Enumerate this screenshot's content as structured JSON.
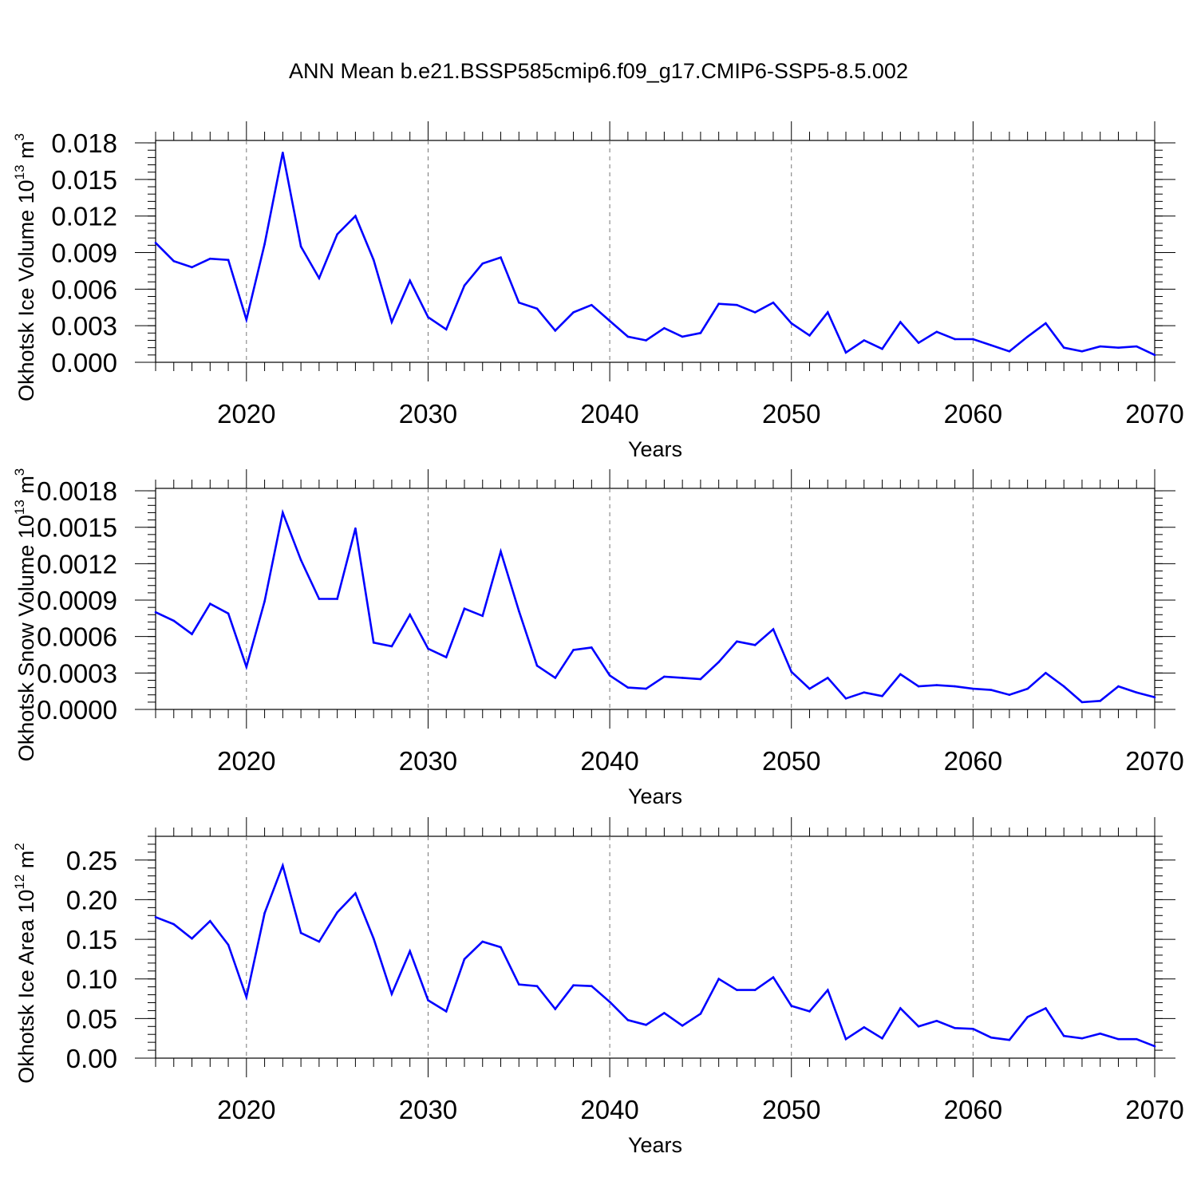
{
  "title": "ANN Mean b.e21.BSSP585cmip6.f09_g17.CMIP6-SSP5-8.5.002",
  "chart_data": [
    {
      "type": "line",
      "title": "",
      "xlabel": "Years",
      "ylabel": "Okhotsk Ice Volume 10",
      "ylabel_exp": "13",
      "ylabel_unit": "m",
      "ylabel_unit_exp": "3",
      "xlim": [
        2015,
        2070
      ],
      "ylim": [
        0,
        0.0182
      ],
      "xticks": [
        "2020",
        "2030",
        "2040",
        "2050",
        "2060",
        "2070"
      ],
      "yticks": [
        "0.000",
        "0.003",
        "0.006",
        "0.009",
        "0.012",
        "0.015",
        "0.018"
      ],
      "grid": "vertical dashed at major x ticks",
      "series": [
        {
          "name": "Ice Volume",
          "color": "#0000ff",
          "x": [
            2015,
            2016,
            2017,
            2018,
            2019,
            2020,
            2021,
            2022,
            2023,
            2024,
            2025,
            2026,
            2027,
            2028,
            2029,
            2030,
            2031,
            2032,
            2033,
            2034,
            2035,
            2036,
            2037,
            2038,
            2039,
            2040,
            2041,
            2042,
            2043,
            2044,
            2045,
            2046,
            2047,
            2048,
            2049,
            2050,
            2051,
            2052,
            2053,
            2054,
            2055,
            2056,
            2057,
            2058,
            2059,
            2060,
            2061,
            2062,
            2063,
            2064,
            2065,
            2066,
            2067,
            2068,
            2069,
            2070
          ],
          "values": [
            0.0098,
            0.0083,
            0.0078,
            0.0085,
            0.0084,
            0.0035,
            0.0097,
            0.0172,
            0.0095,
            0.0069,
            0.0105,
            0.012,
            0.0084,
            0.0033,
            0.0067,
            0.0037,
            0.0027,
            0.0063,
            0.0081,
            0.0086,
            0.0049,
            0.0044,
            0.0026,
            0.0041,
            0.0047,
            0.0034,
            0.0021,
            0.0018,
            0.0028,
            0.0021,
            0.0024,
            0.0048,
            0.0047,
            0.0041,
            0.0049,
            0.0032,
            0.0022,
            0.0041,
            0.0008,
            0.0018,
            0.0011,
            0.0033,
            0.0016,
            0.0025,
            0.0019,
            0.0019,
            0.0014,
            0.0009,
            0.0021,
            0.0032,
            0.0012,
            0.0009,
            0.0013,
            0.0012,
            0.0013,
            0.0006
          ]
        }
      ]
    },
    {
      "type": "line",
      "title": "",
      "xlabel": "Years",
      "ylabel": "Okhotsk Snow Volume 10",
      "ylabel_exp": "13",
      "ylabel_unit": "m",
      "ylabel_unit_exp": "3",
      "xlim": [
        2015,
        2070
      ],
      "ylim": [
        0,
        0.00182
      ],
      "xticks": [
        "2020",
        "2030",
        "2040",
        "2050",
        "2060",
        "2070"
      ],
      "yticks": [
        "0.0000",
        "0.0003",
        "0.0006",
        "0.0009",
        "0.0012",
        "0.0015",
        "0.0018"
      ],
      "grid": "vertical dashed at major x ticks",
      "series": [
        {
          "name": "Snow Volume",
          "color": "#0000ff",
          "x": [
            2015,
            2016,
            2017,
            2018,
            2019,
            2020,
            2021,
            2022,
            2023,
            2024,
            2025,
            2026,
            2027,
            2028,
            2029,
            2030,
            2031,
            2032,
            2033,
            2034,
            2035,
            2036,
            2037,
            2038,
            2039,
            2040,
            2041,
            2042,
            2043,
            2044,
            2045,
            2046,
            2047,
            2048,
            2049,
            2050,
            2051,
            2052,
            2053,
            2054,
            2055,
            2056,
            2057,
            2058,
            2059,
            2060,
            2061,
            2062,
            2063,
            2064,
            2065,
            2066,
            2067,
            2068,
            2069,
            2070
          ],
          "values": [
            0.0008,
            0.00073,
            0.00062,
            0.00087,
            0.00079,
            0.00035,
            0.00089,
            0.00162,
            0.00123,
            0.00091,
            0.00091,
            0.00149,
            0.00055,
            0.00052,
            0.00078,
            0.0005,
            0.00043,
            0.00083,
            0.00077,
            0.0013,
            0.00081,
            0.00036,
            0.00026,
            0.00049,
            0.00051,
            0.00028,
            0.00018,
            0.00017,
            0.00027,
            0.00026,
            0.00025,
            0.00039,
            0.00056,
            0.00053,
            0.00066,
            0.00031,
            0.00017,
            0.00026,
            9e-05,
            0.00014,
            0.00011,
            0.00029,
            0.00019,
            0.0002,
            0.00019,
            0.00017,
            0.00016,
            0.00012,
            0.00017,
            0.0003,
            0.00019,
            6e-05,
            7e-05,
            0.00019,
            0.00014,
            0.0001
          ]
        }
      ]
    },
    {
      "type": "line",
      "title": "",
      "xlabel": "Years",
      "ylabel": "Okhotsk Ice Area 10",
      "ylabel_exp": "12",
      "ylabel_unit": "m",
      "ylabel_unit_exp": "2",
      "xlim": [
        2015,
        2070
      ],
      "ylim": [
        0,
        0.28
      ],
      "xticks": [
        "2020",
        "2030",
        "2040",
        "2050",
        "2060",
        "2070"
      ],
      "yticks": [
        "0.00",
        "0.05",
        "0.10",
        "0.15",
        "0.20",
        "0.25"
      ],
      "grid": "vertical dashed at major x ticks",
      "series": [
        {
          "name": "Ice Area",
          "color": "#0000ff",
          "x": [
            2015,
            2016,
            2017,
            2018,
            2019,
            2020,
            2021,
            2022,
            2023,
            2024,
            2025,
            2026,
            2027,
            2028,
            2029,
            2030,
            2031,
            2032,
            2033,
            2034,
            2035,
            2036,
            2037,
            2038,
            2039,
            2040,
            2041,
            2042,
            2043,
            2044,
            2045,
            2046,
            2047,
            2048,
            2049,
            2050,
            2051,
            2052,
            2053,
            2054,
            2055,
            2056,
            2057,
            2058,
            2059,
            2060,
            2061,
            2062,
            2063,
            2064,
            2065,
            2066,
            2067,
            2068,
            2069,
            2070
          ],
          "values": [
            0.178,
            0.169,
            0.151,
            0.173,
            0.143,
            0.077,
            0.183,
            0.243,
            0.158,
            0.147,
            0.184,
            0.208,
            0.151,
            0.081,
            0.135,
            0.073,
            0.059,
            0.125,
            0.147,
            0.14,
            0.093,
            0.091,
            0.062,
            0.092,
            0.091,
            0.071,
            0.048,
            0.042,
            0.057,
            0.041,
            0.056,
            0.1,
            0.086,
            0.086,
            0.102,
            0.066,
            0.059,
            0.086,
            0.024,
            0.039,
            0.025,
            0.063,
            0.04,
            0.047,
            0.038,
            0.037,
            0.026,
            0.023,
            0.052,
            0.063,
            0.028,
            0.025,
            0.031,
            0.024,
            0.024,
            0.015
          ]
        }
      ]
    }
  ]
}
